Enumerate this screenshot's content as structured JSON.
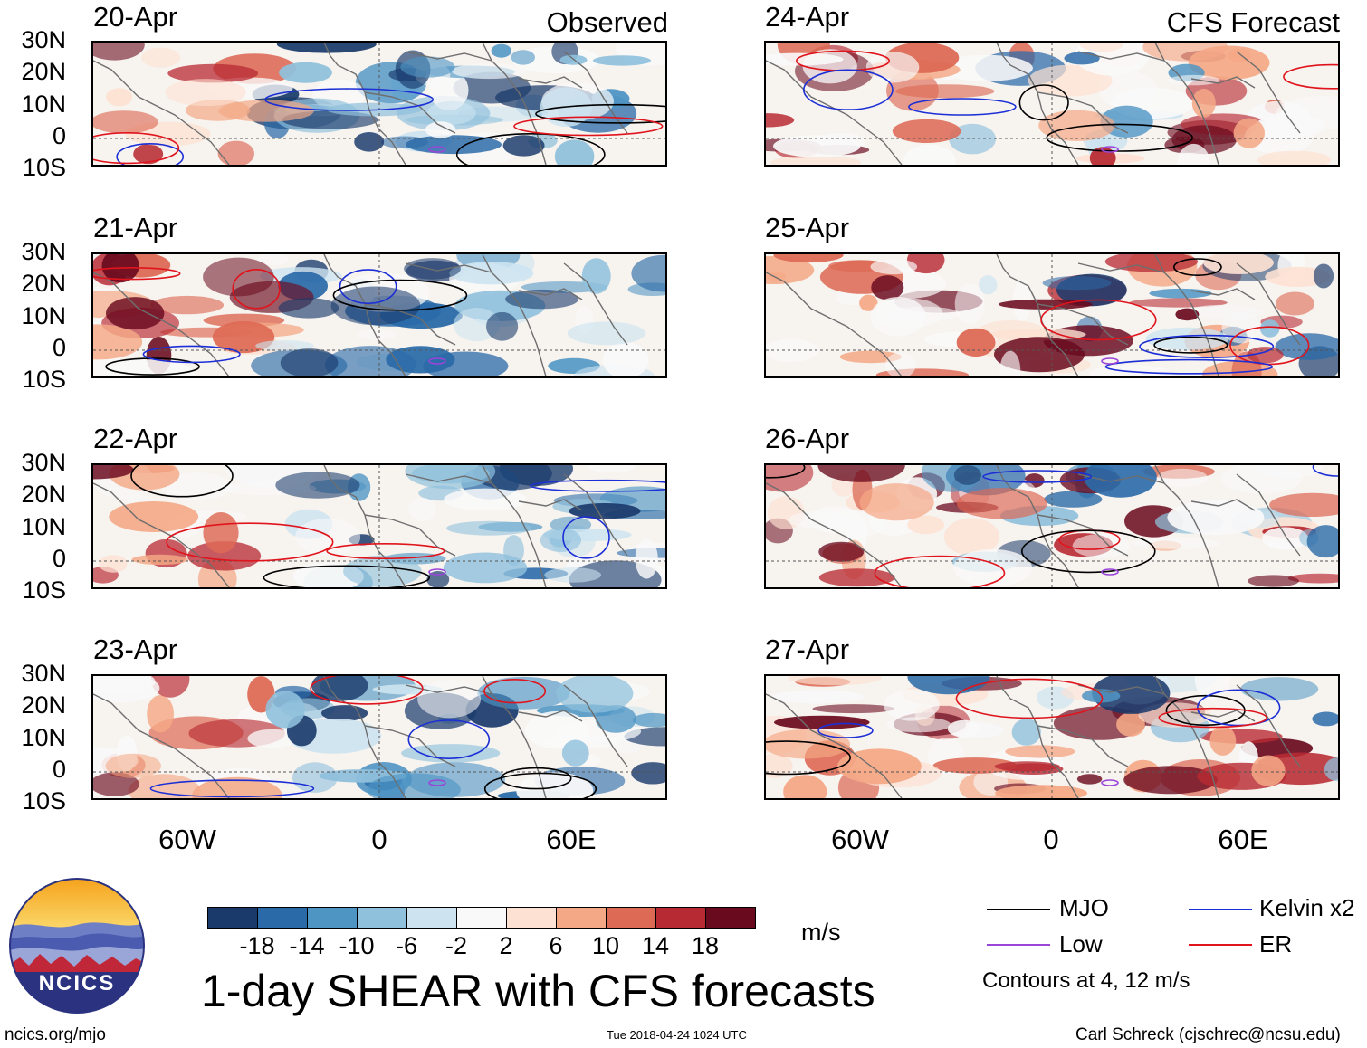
{
  "left_header": "Observed",
  "right_header": "CFS Forecast",
  "left_panels": [
    "20-Apr",
    "21-Apr",
    "22-Apr",
    "23-Apr"
  ],
  "right_panels": [
    "24-Apr",
    "25-Apr",
    "26-Apr",
    "27-Apr"
  ],
  "lat_labels": [
    "30N",
    "20N",
    "10N",
    "0",
    "10S"
  ],
  "lon_labels": [
    "60W",
    "0",
    "60E"
  ],
  "colorbar": {
    "colors": [
      "#1a3a6b",
      "#2a6aa8",
      "#4f95c4",
      "#8fc0dc",
      "#cde4f0",
      "#f9f9f9",
      "#fde1d2",
      "#f4a886",
      "#dd6a55",
      "#b82a33",
      "#6a0a1e"
    ],
    "ticks": [
      "-18",
      "-14",
      "-10",
      "-6",
      "-2",
      "2",
      "6",
      "10",
      "14",
      "18"
    ],
    "units": "m/s"
  },
  "title": "1-day SHEAR with CFS forecasts",
  "legend": [
    {
      "label": "MJO",
      "color": "#000000"
    },
    {
      "label": "Kelvin x2",
      "color": "#1c2fd6"
    },
    {
      "label": "Low",
      "color": "#9a45d8"
    },
    {
      "label": "ER",
      "color": "#e0141c"
    }
  ],
  "contour_note": "Contours at 4, 12 m/s",
  "logo_text": "NCICS",
  "footer": {
    "url": "ncics.org/mjo",
    "timestamp": "Tue 2018-04-24 1024 UTC",
    "author": "Carl Schreck (cjschrec@ncsu.edu)"
  }
}
